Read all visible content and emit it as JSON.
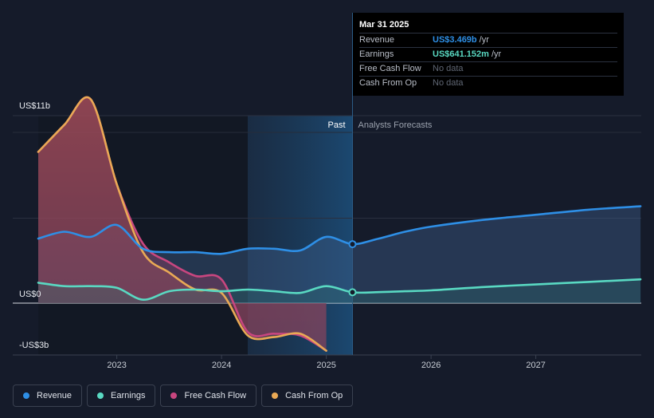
{
  "tooltip": {
    "date": "Mar 31 2025",
    "rows": [
      {
        "label": "Revenue",
        "value": "US$3.469b",
        "unit": "/yr",
        "color": "#2e8fe6"
      },
      {
        "label": "Earnings",
        "value": "US$641.152m",
        "unit": "/yr",
        "color": "#59d9c2"
      },
      {
        "label": "Free Cash Flow",
        "value": "No data",
        "unit": "",
        "color": "#5f6673"
      },
      {
        "label": "Cash From Op",
        "value": "No data",
        "unit": "",
        "color": "#5f6673"
      }
    ]
  },
  "legend": [
    {
      "label": "Revenue",
      "color": "#2e8fe6"
    },
    {
      "label": "Earnings",
      "color": "#59d9c2"
    },
    {
      "label": "Free Cash Flow",
      "color": "#c8467f"
    },
    {
      "label": "Cash From Op",
      "color": "#e9a955"
    }
  ],
  "chart_data": {
    "type": "line",
    "title": "",
    "xlabel": "",
    "ylabel": "",
    "ylim": [
      -3,
      11
    ],
    "xlim": [
      2022.25,
      2028.0
    ],
    "y_tick_labels": [
      {
        "value": 11,
        "label": "US$11b"
      },
      {
        "value": 0,
        "label": "US$0"
      },
      {
        "value": -3,
        "label": "-US$3b"
      }
    ],
    "x_tick_labels": [
      {
        "value": 2023,
        "label": "2023"
      },
      {
        "value": 2024,
        "label": "2024"
      },
      {
        "value": 2025,
        "label": "2025"
      },
      {
        "value": 2026,
        "label": "2026"
      },
      {
        "value": 2027,
        "label": "2027"
      }
    ],
    "past_start": 2024.25,
    "past_end": 2025.25,
    "region_labels": {
      "past": "Past",
      "forecast": "Analysts Forecasts"
    },
    "series": [
      {
        "name": "Revenue",
        "color": "#2e8fe6",
        "x": [
          2022.25,
          2022.5,
          2022.75,
          2023.0,
          2023.25,
          2023.5,
          2023.75,
          2024.0,
          2024.25,
          2024.5,
          2024.75,
          2025.0,
          2025.25,
          2025.5,
          2025.75,
          2026.0,
          2026.5,
          2027.0,
          2027.5,
          2028.0
        ],
        "y": [
          3.8,
          4.2,
          3.9,
          4.6,
          3.2,
          3.0,
          3.0,
          2.9,
          3.2,
          3.2,
          3.1,
          3.9,
          3.47,
          3.8,
          4.2,
          4.5,
          4.9,
          5.2,
          5.5,
          5.7
        ]
      },
      {
        "name": "Earnings",
        "color": "#59d9c2",
        "x": [
          2022.25,
          2022.5,
          2022.75,
          2023.0,
          2023.25,
          2023.5,
          2023.75,
          2024.0,
          2024.25,
          2024.5,
          2024.75,
          2025.0,
          2025.25,
          2025.5,
          2025.75,
          2026.0,
          2026.5,
          2027.0,
          2027.5,
          2028.0
        ],
        "y": [
          1.2,
          1.0,
          1.0,
          0.9,
          0.2,
          0.7,
          0.8,
          0.7,
          0.8,
          0.7,
          0.6,
          1.0,
          0.64,
          0.65,
          0.7,
          0.75,
          0.95,
          1.1,
          1.25,
          1.4
        ]
      },
      {
        "name": "Free Cash Flow",
        "color": "#c8467f",
        "x": [
          2022.25,
          2022.5,
          2022.75,
          2023.0,
          2023.25,
          2023.5,
          2023.75,
          2024.0,
          2024.25,
          2024.5,
          2024.75,
          2025.0
        ],
        "y": [
          8.9,
          10.5,
          12.0,
          7.0,
          3.5,
          2.4,
          1.6,
          1.4,
          -1.7,
          -1.8,
          -1.9,
          -2.8
        ]
      },
      {
        "name": "Cash From Op",
        "color": "#e9a955",
        "x": [
          2022.25,
          2022.5,
          2022.75,
          2023.0,
          2023.25,
          2023.5,
          2023.75,
          2024.0,
          2024.25,
          2024.5,
          2024.75,
          2025.0
        ],
        "y": [
          8.9,
          10.5,
          12.0,
          7.0,
          3.0,
          1.8,
          0.8,
          0.6,
          -1.9,
          -2.0,
          -1.8,
          -2.8
        ]
      }
    ]
  }
}
